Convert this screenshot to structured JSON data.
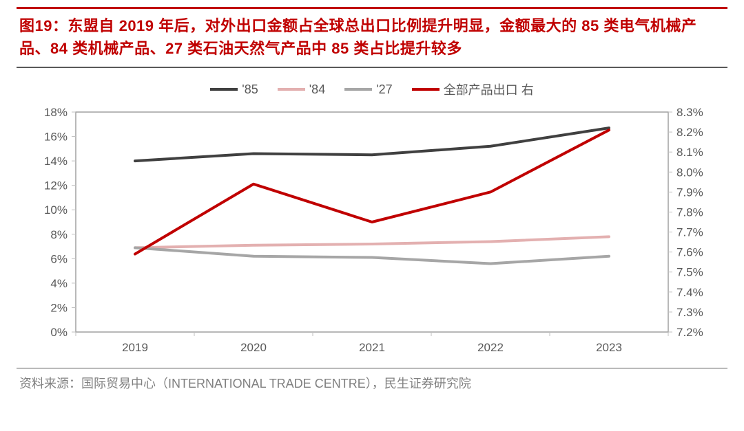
{
  "title": "图19：东盟自 2019 年后，对外出口金额占全球总出口比例提升明显，金额最大的 85 类电气机械产品、84 类机械产品、27 类石油天然气产品中 85 类占比提升较多",
  "source": "资料来源：国际贸易中心（INTERNATIONAL TRADE CENTRE），民生证券研究院",
  "chart": {
    "type": "line",
    "background_color": "#ffffff",
    "plot_border_color": "#a0a0a0",
    "tick_color": "#bfbfbf",
    "axis_text_color": "#595959",
    "axis_fontsize": 17,
    "line_width": 4,
    "categories": [
      "2019",
      "2020",
      "2021",
      "2022",
      "2023"
    ],
    "left_axis": {
      "min": 0,
      "max": 18,
      "step": 2,
      "suffix": "%"
    },
    "right_axis": {
      "min": 7.2,
      "max": 8.3,
      "step": 0.1,
      "suffix": "%",
      "decimals": 1
    },
    "series": [
      {
        "key": "s85",
        "label": "'85",
        "color": "#404040",
        "axis": "left",
        "values": [
          14.0,
          14.6,
          14.5,
          15.2,
          16.7
        ]
      },
      {
        "key": "s84",
        "label": "'84",
        "color": "#e3b0b0",
        "axis": "left",
        "values": [
          6.9,
          7.1,
          7.2,
          7.4,
          7.8
        ]
      },
      {
        "key": "s27",
        "label": "'27",
        "color": "#a6a6a6",
        "axis": "left",
        "values": [
          6.9,
          6.2,
          6.1,
          5.6,
          6.2
        ]
      },
      {
        "key": "all",
        "label": "全部产品出口 右",
        "color": "#c00000",
        "axis": "right",
        "values": [
          7.59,
          7.94,
          7.75,
          7.9,
          8.21
        ]
      }
    ]
  }
}
